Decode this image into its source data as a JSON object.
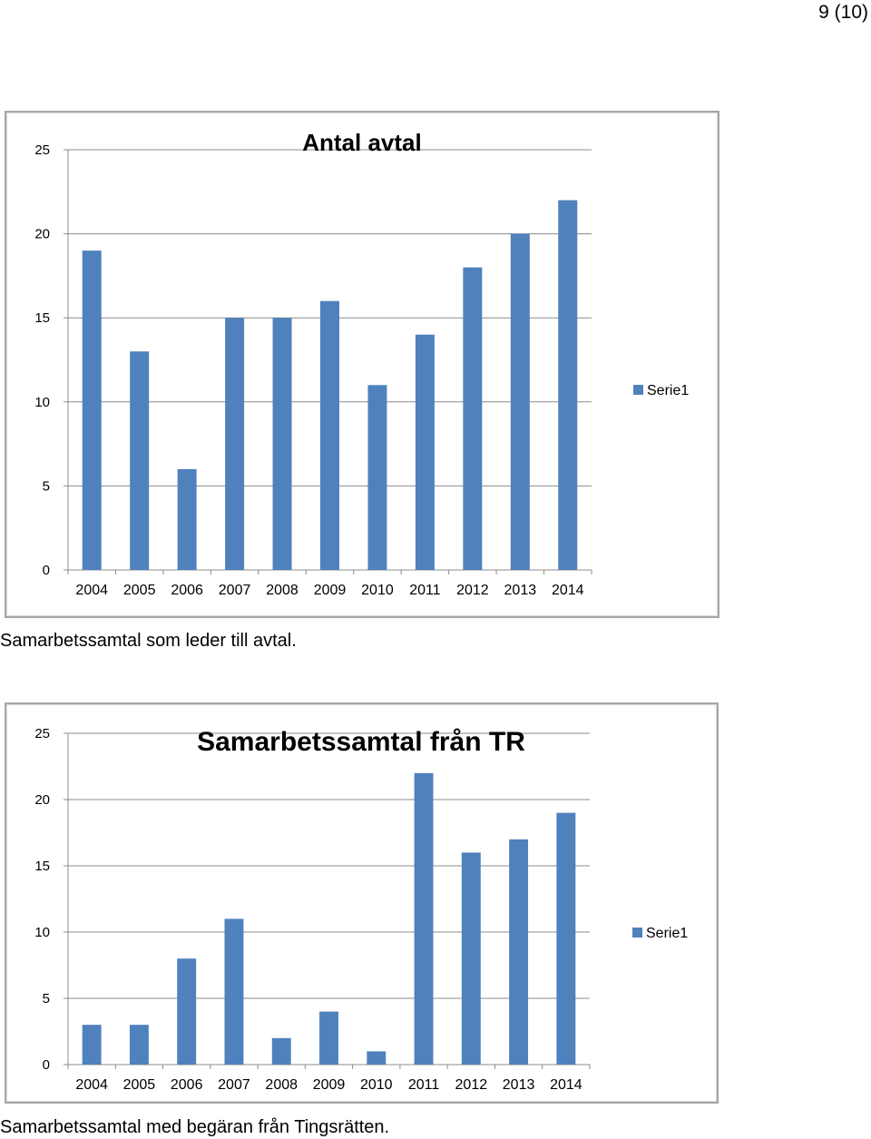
{
  "page": {
    "number": "9 (10)"
  },
  "colors": {
    "bar": "#4f81bd",
    "grid": "#8c8c8c",
    "axis": "#8c8c8c",
    "frame": "#a6a6a6",
    "text": "#000000"
  },
  "chart_data": [
    {
      "type": "bar",
      "title": "Antal avtal",
      "categories": [
        "2004",
        "2005",
        "2006",
        "2007",
        "2008",
        "2009",
        "2010",
        "2011",
        "2012",
        "2013",
        "2014"
      ],
      "series": [
        {
          "name": "Serie1",
          "values": [
            19,
            13,
            6,
            15,
            15,
            16,
            11,
            14,
            18,
            20,
            22
          ]
        }
      ],
      "yticks": [
        "0",
        "5",
        "10",
        "15",
        "20",
        "25"
      ],
      "ylim": [
        0,
        25
      ],
      "grid": true,
      "legend": "right"
    },
    {
      "type": "bar",
      "title": "Samarbetssamtal från TR",
      "categories": [
        "2004",
        "2005",
        "2006",
        "2007",
        "2008",
        "2009",
        "2010",
        "2011",
        "2012",
        "2013",
        "2014"
      ],
      "series": [
        {
          "name": "Serie1",
          "values": [
            3,
            3,
            8,
            11,
            2,
            4,
            1,
            22,
            16,
            17,
            19
          ]
        }
      ],
      "yticks": [
        "0",
        "5",
        "10",
        "15",
        "20",
        "25"
      ],
      "ylim": [
        0,
        25
      ],
      "grid": true,
      "legend": "right"
    }
  ],
  "captions": [
    "Samarbetssamtal som leder till avtal.",
    "Samarbetssamtal med begäran från Tingsrätten."
  ]
}
